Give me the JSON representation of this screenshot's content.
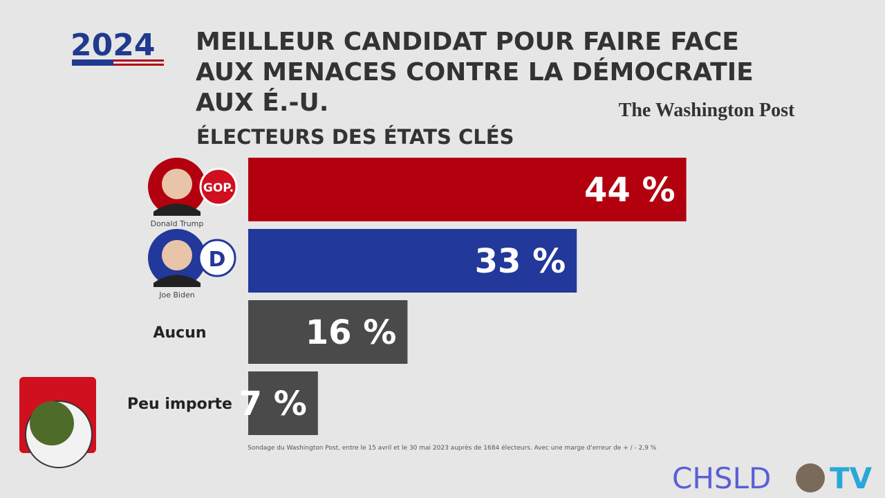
{
  "chart_data": {
    "type": "bar",
    "orientation": "horizontal",
    "logo": "2024",
    "title": [
      "MEILLEUR CANDIDAT POUR FAIRE FACE",
      "AUX MENACES CONTRE LA DÉMOCRATIE",
      "AUX É.-U."
    ],
    "subtitle": "ÉLECTEURS DES ÉTATS CLÉS",
    "publisher": "The Washington Post",
    "categories": [
      "Donald Trump",
      "Joe Biden",
      "Aucun",
      "Peu importe"
    ],
    "badges": [
      "GOP.",
      "D",
      null,
      null
    ],
    "values": [
      44,
      33,
      16,
      7
    ],
    "value_labels": [
      "44 %",
      "33 %",
      "16 %",
      "7 %"
    ],
    "colors": [
      "#b3000f",
      "#22389a",
      "#4a4a4a",
      "#4a4a4a"
    ],
    "source": "Sondage du Washington Post, entre le 15 avril et le 30 mai 2023 auprès de 1684 électeurs. Avec une marge d'erreur de + / - 2,9 %",
    "watermark": [
      "CHSLD",
      "TV"
    ]
  }
}
